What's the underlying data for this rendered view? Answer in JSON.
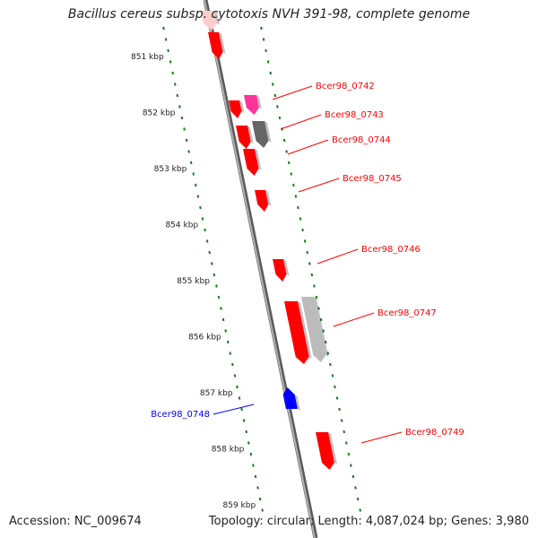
{
  "header": {
    "title": "Bacillus cereus subsp. cytotoxis NVH 391-98, complete genome"
  },
  "footer": {
    "accession": "Accession: NC_009674",
    "stats": "Topology: circular; Length: 4,087,024 bp; Genes: 3,980"
  },
  "ruler": {
    "ticks": [
      "851 kbp",
      "852 kbp",
      "853 kbp",
      "854 kbp",
      "855 kbp",
      "856 kbp",
      "857 kbp",
      "858 kbp",
      "859 kbp"
    ]
  },
  "colors": {
    "backbone": "#8a8a8a",
    "tick": "#1f7a1f",
    "forward_gene": "#ff0000",
    "reverse_gene": "#0000ff",
    "cds_pink": "#ff3399",
    "cds_dark_gray": "#666666",
    "cds_light_gray": "#bbbbbb",
    "cds_faint_pink": "#ffcccc"
  },
  "genes": [
    {
      "name": "Bcer98_0742",
      "strand": "forward"
    },
    {
      "name": "Bcer98_0743",
      "strand": "forward"
    },
    {
      "name": "Bcer98_0744",
      "strand": "forward"
    },
    {
      "name": "Bcer98_0745",
      "strand": "forward"
    },
    {
      "name": "Bcer98_0746",
      "strand": "forward"
    },
    {
      "name": "Bcer98_0747",
      "strand": "forward"
    },
    {
      "name": "Bcer98_0748",
      "strand": "reverse"
    },
    {
      "name": "Bcer98_0749",
      "strand": "forward"
    }
  ]
}
